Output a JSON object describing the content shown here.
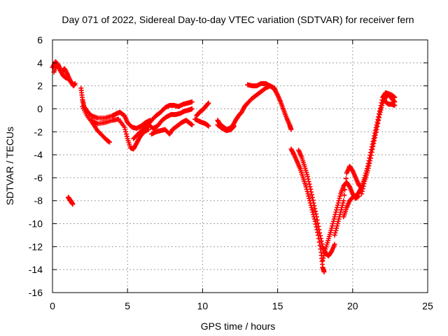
{
  "chart_data": {
    "type": "scatter",
    "title": "Day 071 of 2022, Sidereal Day-to-day VTEC variation (SDTVAR) for receiver fern",
    "xlabel": "GPS time / hours",
    "ylabel": "SDTVAR / TECUs",
    "xlim": [
      0,
      25
    ],
    "ylim": [
      -16,
      6
    ],
    "xticks": [
      0,
      5,
      10,
      15,
      20,
      25
    ],
    "yticks": [
      -16,
      -14,
      -12,
      -10,
      -8,
      -6,
      -4,
      -2,
      0,
      2,
      4,
      6
    ],
    "grid": true,
    "marker": "+",
    "color": "#ff0000",
    "traces": [
      {
        "points": [
          [
            0.0,
            3.6
          ],
          [
            0.2,
            4.1
          ],
          [
            0.4,
            3.8
          ],
          [
            0.6,
            3.2
          ],
          [
            0.8,
            3.5
          ],
          [
            1.0,
            3.0
          ],
          [
            1.2,
            2.4
          ],
          [
            1.4,
            2.0
          ],
          [
            1.5,
            2.2
          ]
        ]
      },
      {
        "points": [
          [
            0.1,
            3.2
          ],
          [
            0.3,
            3.9
          ],
          [
            0.5,
            3.4
          ],
          [
            0.7,
            2.9
          ],
          [
            0.9,
            2.7
          ],
          [
            1.1,
            2.6
          ],
          [
            1.3,
            2.2
          ]
        ]
      },
      {
        "points": [
          [
            1.05,
            -7.7
          ],
          [
            1.15,
            -7.9
          ],
          [
            1.25,
            -8.1
          ],
          [
            1.35,
            -8.3
          ]
        ]
      },
      {
        "points": [
          [
            1.9,
            1.8
          ],
          [
            2.0,
            0.8
          ],
          [
            2.1,
            0.2
          ],
          [
            2.3,
            -0.2
          ],
          [
            2.6,
            -0.6
          ],
          [
            3.0,
            -0.8
          ],
          [
            3.5,
            -0.8
          ],
          [
            4.0,
            -0.6
          ],
          [
            4.3,
            -0.4
          ],
          [
            4.5,
            -0.3
          ],
          [
            4.8,
            -0.6
          ],
          [
            5.0,
            -1.2
          ],
          [
            5.3,
            -1.6
          ],
          [
            5.6,
            -1.7
          ],
          [
            5.9,
            -1.5
          ],
          [
            6.2,
            -1.2
          ],
          [
            6.5,
            -1.0
          ]
        ]
      },
      {
        "points": [
          [
            2.0,
            0.2
          ],
          [
            2.3,
            -0.6
          ],
          [
            2.7,
            -1.3
          ],
          [
            3.0,
            -1.9
          ],
          [
            3.3,
            -2.3
          ],
          [
            3.6,
            -2.7
          ],
          [
            3.8,
            -2.9
          ]
        ]
      },
      {
        "points": [
          [
            2.6,
            -1.0
          ],
          [
            3.0,
            -1.3
          ],
          [
            3.5,
            -1.2
          ],
          [
            4.0,
            -1.0
          ],
          [
            4.4,
            -0.9
          ],
          [
            4.8,
            -1.6
          ],
          [
            5.0,
            -2.6
          ],
          [
            5.2,
            -3.4
          ],
          [
            5.4,
            -3.5
          ],
          [
            5.6,
            -3.0
          ],
          [
            5.8,
            -2.5
          ],
          [
            6.1,
            -2.0
          ],
          [
            6.4,
            -1.8
          ]
        ]
      },
      {
        "points": [
          [
            5.4,
            -2.6
          ],
          [
            5.7,
            -2.2
          ],
          [
            6.0,
            -1.8
          ],
          [
            6.3,
            -1.5
          ],
          [
            6.6,
            -1.0
          ],
          [
            6.9,
            -0.6
          ],
          [
            7.2,
            -0.3
          ],
          [
            7.5,
            0.1
          ],
          [
            7.8,
            0.3
          ],
          [
            8.1,
            0.3
          ],
          [
            8.4,
            0.2
          ],
          [
            8.7,
            0.4
          ],
          [
            9.0,
            0.5
          ],
          [
            9.3,
            0.6
          ]
        ]
      },
      {
        "points": [
          [
            6.4,
            -1.4
          ],
          [
            6.7,
            -1.7
          ],
          [
            7.0,
            -1.5
          ],
          [
            7.3,
            -1.0
          ],
          [
            7.6,
            -0.7
          ],
          [
            7.9,
            -0.5
          ],
          [
            8.2,
            -0.5
          ],
          [
            8.5,
            -0.4
          ],
          [
            8.8,
            -0.2
          ],
          [
            9.1,
            -0.1
          ],
          [
            9.3,
            0.0
          ]
        ]
      },
      {
        "points": [
          [
            6.6,
            -2.2
          ],
          [
            6.9,
            -2.0
          ],
          [
            7.2,
            -1.9
          ],
          [
            7.5,
            -1.8
          ],
          [
            7.8,
            -2.2
          ],
          [
            8.0,
            -1.8
          ],
          [
            8.3,
            -1.5
          ],
          [
            8.6,
            -1.2
          ],
          [
            8.9,
            -1.0
          ],
          [
            9.1,
            -1.2
          ],
          [
            9.3,
            -1.4
          ]
        ]
      },
      {
        "points": [
          [
            9.6,
            -0.6
          ],
          [
            9.8,
            -0.3
          ],
          [
            10.0,
            -0.1
          ],
          [
            10.2,
            0.2
          ],
          [
            10.4,
            0.5
          ]
        ]
      },
      {
        "points": [
          [
            9.5,
            -0.9
          ],
          [
            9.8,
            -1.1
          ],
          [
            10.0,
            -1.2
          ],
          [
            10.2,
            -1.3
          ],
          [
            10.4,
            -1.5
          ]
        ]
      },
      {
        "points": [
          [
            11.0,
            -1.0
          ],
          [
            11.2,
            -1.4
          ],
          [
            11.4,
            -1.6
          ],
          [
            11.6,
            -1.8
          ],
          [
            11.8,
            -1.7
          ],
          [
            12.0,
            -1.5
          ],
          [
            12.2,
            -1.0
          ],
          [
            12.4,
            -0.6
          ],
          [
            12.6,
            -0.3
          ],
          [
            12.8,
            0.2
          ],
          [
            13.0,
            0.5
          ],
          [
            13.3,
            0.9
          ],
          [
            13.6,
            1.2
          ],
          [
            13.9,
            1.5
          ],
          [
            14.2,
            1.8
          ],
          [
            14.5,
            2.0
          ],
          [
            14.8,
            1.7
          ],
          [
            15.0,
            1.2
          ],
          [
            15.2,
            0.6
          ],
          [
            15.4,
            -0.1
          ],
          [
            15.6,
            -0.8
          ],
          [
            15.8,
            -1.4
          ],
          [
            15.9,
            -1.8
          ]
        ]
      },
      {
        "points": [
          [
            11.0,
            -1.4
          ],
          [
            11.3,
            -1.7
          ],
          [
            11.6,
            -1.9
          ],
          [
            11.9,
            -1.8
          ],
          [
            12.1,
            -1.5
          ]
        ]
      },
      {
        "points": [
          [
            13.0,
            2.1
          ],
          [
            13.3,
            2.0
          ],
          [
            13.6,
            2.0
          ],
          [
            13.9,
            2.2
          ],
          [
            14.2,
            2.2
          ],
          [
            14.5,
            2.0
          ],
          [
            14.8,
            1.8
          ]
        ]
      },
      {
        "points": [
          [
            15.9,
            -3.5
          ],
          [
            16.1,
            -4.0
          ],
          [
            16.3,
            -4.6
          ],
          [
            16.5,
            -5.2
          ],
          [
            16.7,
            -6.0
          ],
          [
            16.9,
            -6.8
          ],
          [
            17.1,
            -7.8
          ],
          [
            17.3,
            -8.8
          ],
          [
            17.5,
            -9.8
          ],
          [
            17.7,
            -11.0
          ],
          [
            17.9,
            -12.5
          ],
          [
            18.0,
            -13.8
          ],
          [
            18.1,
            -14.2
          ]
        ]
      },
      {
        "points": [
          [
            16.4,
            -3.6
          ],
          [
            16.6,
            -4.2
          ],
          [
            16.8,
            -5.0
          ],
          [
            17.0,
            -5.9
          ],
          [
            17.2,
            -7.0
          ],
          [
            17.4,
            -8.2
          ],
          [
            17.6,
            -9.4
          ],
          [
            17.8,
            -10.8
          ],
          [
            18.0,
            -12.0
          ],
          [
            18.2,
            -12.6
          ],
          [
            18.4,
            -12.8
          ],
          [
            18.6,
            -12.4
          ],
          [
            18.8,
            -11.8
          ]
        ]
      },
      {
        "points": [
          [
            18.0,
            -13.2
          ],
          [
            18.2,
            -12.2
          ],
          [
            18.4,
            -11.3
          ],
          [
            18.6,
            -10.4
          ],
          [
            18.8,
            -9.4
          ],
          [
            19.0,
            -8.4
          ],
          [
            19.2,
            -7.4
          ],
          [
            19.4,
            -6.7
          ],
          [
            19.6,
            -6.4
          ],
          [
            19.8,
            -6.8
          ],
          [
            20.0,
            -7.4
          ],
          [
            20.2,
            -7.8
          ],
          [
            20.4,
            -7.6
          ]
        ]
      },
      {
        "points": [
          [
            18.8,
            -11.0
          ],
          [
            19.0,
            -10.0
          ],
          [
            19.2,
            -9.0
          ],
          [
            19.4,
            -8.0
          ],
          [
            19.6,
            -5.6
          ],
          [
            19.8,
            -5.0
          ],
          [
            20.0,
            -5.4
          ],
          [
            20.2,
            -6.0
          ],
          [
            20.4,
            -6.6
          ],
          [
            20.6,
            -6.9
          ]
        ]
      },
      {
        "points": [
          [
            19.4,
            -9.4
          ],
          [
            19.6,
            -8.6
          ],
          [
            19.8,
            -8.0
          ],
          [
            20.0,
            -7.7
          ],
          [
            20.2,
            -7.6
          ],
          [
            20.4,
            -7.3
          ],
          [
            20.6,
            -6.8
          ],
          [
            20.8,
            -6.0
          ],
          [
            21.0,
            -5.0
          ],
          [
            21.2,
            -3.8
          ],
          [
            21.4,
            -2.6
          ],
          [
            21.6,
            -1.4
          ],
          [
            21.8,
            -0.2
          ],
          [
            22.0,
            1.0
          ],
          [
            22.2,
            1.4
          ],
          [
            22.4,
            1.3
          ],
          [
            22.6,
            0.9
          ],
          [
            22.8,
            0.6
          ]
        ]
      },
      {
        "points": [
          [
            20.6,
            -7.4
          ],
          [
            20.8,
            -6.3
          ],
          [
            21.0,
            -5.4
          ],
          [
            21.2,
            -4.3
          ],
          [
            21.4,
            -3.0
          ],
          [
            21.6,
            -1.8
          ],
          [
            21.8,
            -0.5
          ],
          [
            22.0,
            0.5
          ],
          [
            22.2,
            1.0
          ],
          [
            22.4,
            1.3
          ],
          [
            22.6,
            1.2
          ],
          [
            22.8,
            1.0
          ]
        ]
      },
      {
        "points": [
          [
            22.2,
            0.6
          ],
          [
            22.4,
            0.4
          ],
          [
            22.6,
            0.4
          ],
          [
            22.8,
            0.3
          ]
        ]
      }
    ]
  }
}
